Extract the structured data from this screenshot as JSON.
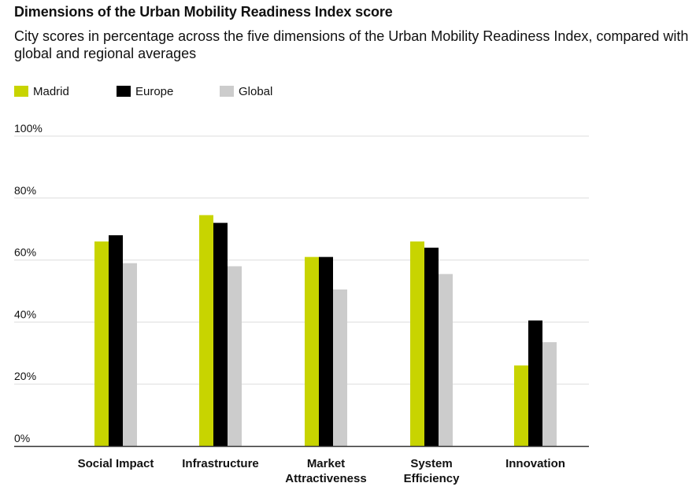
{
  "chart_data": {
    "type": "bar",
    "title": "Dimensions of the Urban Mobility Readiness Index score",
    "subtitle": "City scores in percentage across the five dimensions of the Urban Mobility Readiness Index, compared with global and regional averages",
    "categories": [
      [
        "Social Impact"
      ],
      [
        "Infrastructure"
      ],
      [
        "Market",
        "Attractiveness"
      ],
      [
        "System",
        "Efficiency"
      ],
      [
        "Innovation"
      ]
    ],
    "series": [
      {
        "name": "Madrid",
        "color": "#c8d400",
        "values": [
          66,
          74.5,
          61,
          66,
          26
        ]
      },
      {
        "name": "Europe",
        "color": "#000000",
        "values": [
          68,
          72,
          61,
          64,
          40.5
        ]
      },
      {
        "name": "Global",
        "color": "#cccccc",
        "values": [
          59,
          58,
          50.5,
          55.5,
          33.5
        ]
      }
    ],
    "yticks": [
      "0%",
      "20%",
      "40%",
      "60%",
      "80%",
      "100%"
    ],
    "ylim": [
      0,
      100
    ],
    "grid": true,
    "legend": "top-left"
  }
}
